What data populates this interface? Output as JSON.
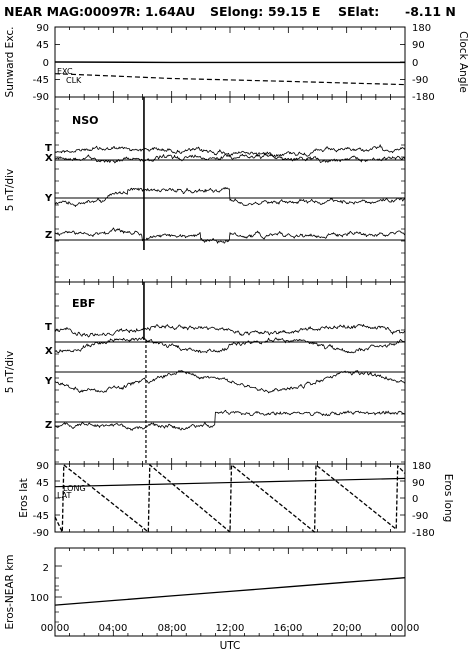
{
  "header": {
    "mission": "NEAR MAG:",
    "doy": "00097",
    "distance": "R: 1.64AU",
    "selong_label": "SElong:",
    "selong_value": "59.15 E",
    "selat_label": "SElat:",
    "selat_value": "-8.11 N"
  },
  "x_axis": {
    "label": "UTC",
    "ticks": [
      "00:00",
      "04:00",
      "08:00",
      "12:00",
      "16:00",
      "20:00",
      "00:00"
    ],
    "range_hours": [
      0,
      24
    ]
  },
  "colors": {
    "trace": "#000000",
    "frame": "#000000",
    "background": "#ffffff"
  },
  "chart_data": [
    {
      "type": "line",
      "panel": "sunward",
      "ylabel_left": "Sunward Exc.",
      "ylabel_right": "Clock Angle",
      "left_ticks": [
        "90",
        "45",
        "0",
        "-45",
        "-90"
      ],
      "right_ticks": [
        "180",
        "90",
        "0",
        "-90",
        "-180"
      ],
      "ylim_left": [
        -90,
        90
      ],
      "ylim_right": [
        -180,
        180
      ],
      "series": [
        {
          "name": "EXC",
          "style": "solid",
          "axis": "left",
          "x": [
            0,
            8,
            24
          ],
          "y": [
            0,
            -1,
            -1
          ]
        },
        {
          "name": "CLK",
          "style": "dashed",
          "axis": "right",
          "x": [
            0,
            4,
            8,
            12,
            16,
            20,
            24
          ],
          "y": [
            -60,
            -72,
            -85,
            -92,
            -100,
            -108,
            -116
          ]
        }
      ]
    },
    {
      "type": "line",
      "panel": "NSO",
      "tag": "NSO",
      "ylabel": "5 nT/div",
      "traces": [
        "T",
        "X",
        "Y",
        "Z"
      ],
      "event_marker_hour": 6.1
    },
    {
      "type": "line",
      "panel": "EBF",
      "tag": "EBF",
      "ylabel": "5 nT/div",
      "traces": [
        "T",
        "X",
        "Y",
        "Z"
      ],
      "event_marker_hour": 6.1
    },
    {
      "type": "line",
      "panel": "eros_angles",
      "ylabel_left": "Eros lat",
      "ylabel_right": "Eros long",
      "left_ticks": [
        "90",
        "45",
        "0",
        "-45",
        "-90"
      ],
      "right_ticks": [
        "180",
        "90",
        "0",
        "-90",
        "-180"
      ],
      "ylim_left": [
        -90,
        90
      ],
      "ylim_right": [
        -180,
        180
      ],
      "series": [
        {
          "name": "LAT",
          "style": "solid",
          "axis": "left",
          "x": [
            0,
            24
          ],
          "y": [
            30,
            52
          ]
        },
        {
          "name": "LONG",
          "style": "dashed",
          "axis": "right",
          "x": [
            0,
            0.5,
            0.6,
            6.4,
            6.5,
            12.0,
            12.1,
            17.8,
            17.9,
            23.4,
            23.5,
            24
          ],
          "y": [
            -100,
            -180,
            175,
            -180,
            175,
            -180,
            175,
            -180,
            175,
            -165,
            170,
            130
          ]
        }
      ]
    },
    {
      "type": "line",
      "panel": "distance",
      "ylabel": "Eros-NEAR km",
      "ticks": [
        "2",
        "100"
      ],
      "series": [
        {
          "name": "Distance",
          "style": "solid",
          "x": [
            0,
            4,
            8,
            12,
            16,
            20,
            24
          ],
          "y": [
            1.22,
            1.32,
            1.42,
            1.52,
            1.62,
            1.72,
            1.82
          ]
        }
      ]
    }
  ]
}
